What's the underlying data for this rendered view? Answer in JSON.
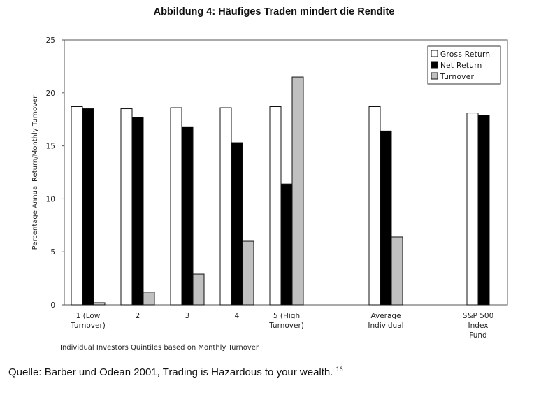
{
  "title": "Abbildung 4: Häufiges Traden mindert die Rendite",
  "source": {
    "text": "Quelle: Barber und Odean 2001, Trading is Hazardous to your wealth.",
    "footnote": "16"
  },
  "colors": {
    "gross": "#ffffff",
    "net": "#000000",
    "turnover": "#c0c0c0",
    "stroke": "#111111"
  },
  "chart_data": {
    "type": "bar",
    "ylabel": "Percentage Annual Return/Monthly Turnover",
    "xlabel": "Individual Investors Quintiles based on Monthly Turnover",
    "ylim": [
      0,
      25
    ],
    "yticks": [
      0,
      5,
      10,
      15,
      20,
      25
    ],
    "legend_position": "top-right",
    "categories": [
      {
        "label": [
          "1 (Low",
          "Turnover)"
        ]
      },
      {
        "label": [
          "2"
        ]
      },
      {
        "label": [
          "3"
        ]
      },
      {
        "label": [
          "4"
        ]
      },
      {
        "label": [
          "5 (High",
          "Turnover)"
        ]
      },
      {
        "label": [
          "Average",
          "Individual"
        ]
      },
      {
        "label": [
          "S&P 500",
          "Index",
          "Fund"
        ]
      }
    ],
    "series": [
      {
        "name": "Gross Return",
        "color_key": "gross",
        "values": [
          18.7,
          18.5,
          18.6,
          18.6,
          18.7,
          18.7,
          18.1
        ]
      },
      {
        "name": "Net Return",
        "color_key": "net",
        "values": [
          18.5,
          17.7,
          16.8,
          15.3,
          11.4,
          16.4,
          17.9
        ]
      },
      {
        "name": "Turnover",
        "color_key": "turnover",
        "values": [
          0.2,
          1.2,
          2.9,
          6.0,
          21.5,
          6.4,
          null
        ]
      }
    ]
  }
}
